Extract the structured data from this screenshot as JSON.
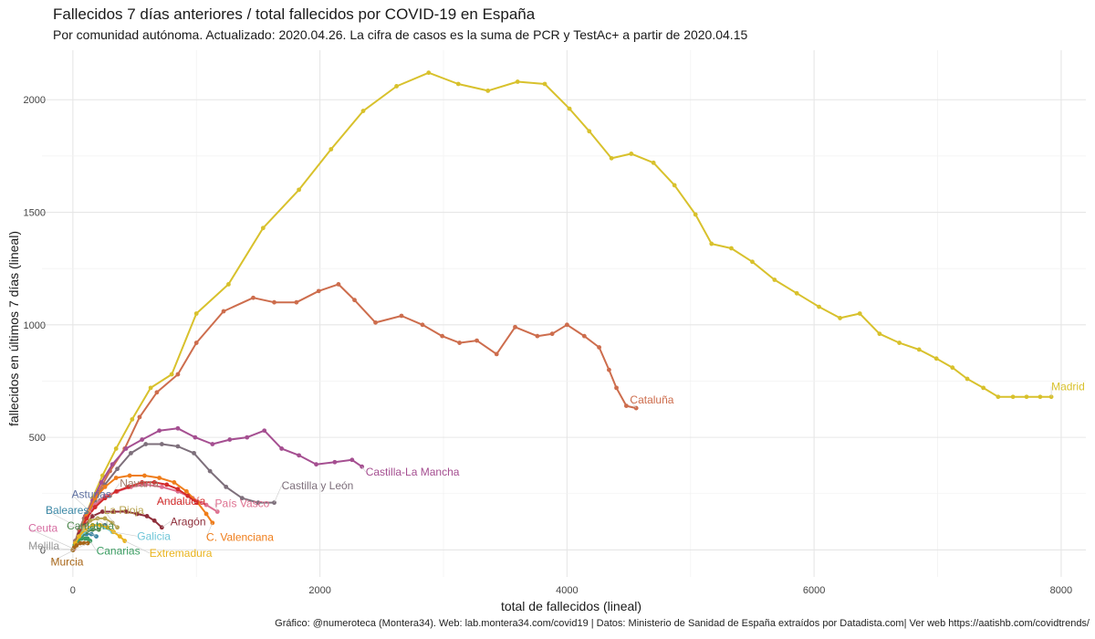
{
  "header": {
    "title": "Fallecidos 7 días anteriores / total fallecidos por COVID-19 en España",
    "subtitle": "Por comunidad autónoma. Actualizado: 2020.04.26. La cifra de casos es la suma de PCR y TestAc+ a partir de 2020.04.15"
  },
  "footer": {
    "caption": "Gráfico: @numeroteca (Montera34). Web: lab.montera34.com/covid19 | Datos: Ministerio de Sanidad de España extraídos por Datadista.com| Ver web https://aatishb.com/covidtrends/"
  },
  "chart_data": {
    "type": "line",
    "xlabel": "total de fallecidos (lineal)",
    "ylabel": "fallecidos en últimos 7 días (lineal)",
    "xlim": [
      -250,
      8200
    ],
    "ylim": [
      -120,
      2220
    ],
    "xticks": [
      0,
      2000,
      4000,
      6000,
      8000
    ],
    "yticks": [
      0,
      500,
      1000,
      1500,
      2000
    ],
    "grid": true,
    "legend": "none (direct labels)",
    "series": [
      {
        "name": "Madrid",
        "color": "#d8c12c",
        "label_at": [
          7920,
          710
        ],
        "x": [
          0,
          10,
          30,
          60,
          100,
          160,
          240,
          350,
          480,
          630,
          800,
          1000,
          1260,
          1540,
          1830,
          2090,
          2350,
          2620,
          2880,
          3120,
          3360,
          3600,
          3820,
          4020,
          4180,
          4360,
          4520,
          4700,
          4870,
          5040,
          5170,
          5330,
          5500,
          5680,
          5860,
          6040,
          6210,
          6370,
          6530,
          6690,
          6850,
          6990,
          7120,
          7240,
          7370,
          7490,
          7610,
          7720,
          7830,
          7920
        ],
        "y": [
          0,
          10,
          40,
          90,
          150,
          230,
          330,
          450,
          580,
          720,
          780,
          1050,
          1180,
          1430,
          1600,
          1780,
          1950,
          2060,
          2120,
          2070,
          2040,
          2080,
          2070,
          1960,
          1860,
          1740,
          1760,
          1720,
          1620,
          1490,
          1360,
          1340,
          1280,
          1200,
          1140,
          1080,
          1030,
          1050,
          960,
          920,
          890,
          850,
          810,
          760,
          720,
          680,
          680,
          680,
          680,
          680
        ]
      },
      {
        "name": "Cataluña",
        "color": "#cd6d4d",
        "label_at": [
          4510,
          650
        ],
        "x": [
          0,
          20,
          60,
          120,
          200,
          300,
          420,
          540,
          680,
          850,
          1000,
          1220,
          1460,
          1630,
          1810,
          1990,
          2150,
          2280,
          2450,
          2660,
          2830,
          2990,
          3130,
          3270,
          3430,
          3580,
          3760,
          3880,
          4000,
          4140,
          4260,
          4340,
          4400,
          4480,
          4560
        ],
        "y": [
          0,
          20,
          70,
          150,
          250,
          350,
          450,
          590,
          700,
          780,
          920,
          1060,
          1120,
          1100,
          1100,
          1150,
          1180,
          1110,
          1010,
          1040,
          1000,
          950,
          920,
          930,
          870,
          990,
          950,
          960,
          1000,
          950,
          900,
          800,
          720,
          640,
          630
        ]
      },
      {
        "name": "Castilla-La Mancha",
        "color": "#a54f91",
        "label_at": [
          2370,
          330
        ],
        "x": [
          0,
          20,
          50,
          100,
          160,
          230,
          320,
          430,
          560,
          700,
          850,
          990,
          1130,
          1270,
          1410,
          1550,
          1690,
          1830,
          1970,
          2120,
          2260,
          2340
        ],
        "y": [
          0,
          40,
          90,
          150,
          220,
          300,
          380,
          450,
          490,
          530,
          540,
          500,
          470,
          490,
          500,
          530,
          450,
          420,
          380,
          390,
          400,
          370
        ]
      },
      {
        "name": "Castilla y León",
        "color": "#7d6f7b",
        "label_at": [
          1690,
          270
        ],
        "x": [
          0,
          20,
          60,
          110,
          180,
          260,
          360,
          470,
          590,
          720,
          850,
          980,
          1110,
          1240,
          1370,
          1500,
          1630
        ],
        "y": [
          0,
          40,
          100,
          160,
          220,
          290,
          360,
          430,
          470,
          470,
          460,
          430,
          350,
          280,
          230,
          210,
          210
        ]
      },
      {
        "name": "Navarra",
        "color": "#a07a68",
        "label_at": [
          380,
          280
        ],
        "x": [
          0,
          20,
          50,
          90,
          150,
          220,
          300
        ],
        "y": [
          0,
          40,
          90,
          140,
          190,
          220,
          240
        ]
      },
      {
        "name": "País Vasco",
        "color": "#de6f8f",
        "label_at": [
          1150,
          190
        ],
        "x": [
          0,
          20,
          60,
          110,
          180,
          260,
          360,
          470,
          590,
          720,
          850,
          970,
          1080,
          1170
        ],
        "y": [
          0,
          30,
          80,
          140,
          200,
          240,
          260,
          280,
          290,
          280,
          260,
          230,
          200,
          170
        ]
      },
      {
        "name": "C. Valenciana",
        "color": "#ef7d1a",
        "label_at": [
          1080,
          40
        ],
        "x": [
          0,
          20,
          60,
          110,
          180,
          260,
          350,
          460,
          580,
          700,
          820,
          920,
          1010,
          1080,
          1130
        ],
        "y": [
          0,
          30,
          80,
          150,
          230,
          280,
          320,
          330,
          330,
          320,
          300,
          260,
          210,
          160,
          120
        ]
      },
      {
        "name": "Andalucía",
        "color": "#d42b2b",
        "label_at": [
          680,
          200
        ],
        "x": [
          0,
          20,
          60,
          110,
          180,
          260,
          350,
          450,
          560,
          660,
          760,
          850,
          930,
          1000
        ],
        "y": [
          0,
          30,
          80,
          140,
          190,
          230,
          260,
          280,
          300,
          300,
          290,
          270,
          240,
          210
        ]
      },
      {
        "name": "Aragón",
        "color": "#8e2e3a",
        "label_at": [
          790,
          110
        ],
        "x": [
          0,
          20,
          50,
          100,
          160,
          240,
          330,
          430,
          520,
          600,
          660,
          720
        ],
        "y": [
          0,
          30,
          70,
          110,
          150,
          170,
          170,
          170,
          160,
          150,
          130,
          100
        ]
      },
      {
        "name": "Asturias",
        "color": "#5d6fa0",
        "label_at": [
          -10,
          230
        ],
        "x": [
          0,
          20,
          50,
          90,
          140,
          200,
          260
        ],
        "y": [
          0,
          20,
          50,
          80,
          100,
          110,
          110
        ]
      },
      {
        "name": "Baleares",
        "color": "#3a87a5",
        "label_at": [
          -220,
          160
        ],
        "x": [
          0,
          15,
          40,
          70,
          110,
          150,
          190
        ],
        "y": [
          0,
          20,
          40,
          60,
          70,
          70,
          60
        ]
      },
      {
        "name": "Cantabria",
        "color": "#4f8a4f",
        "label_at": [
          -50,
          90
        ],
        "x": [
          0,
          15,
          40,
          70,
          110,
          160,
          210
        ],
        "y": [
          0,
          20,
          40,
          60,
          80,
          90,
          90
        ]
      },
      {
        "name": "La Rioja",
        "color": "#b7a34d",
        "label_at": [
          250,
          160
        ],
        "x": [
          0,
          20,
          50,
          90,
          140,
          200,
          260,
          320,
          360
        ],
        "y": [
          0,
          30,
          60,
          100,
          130,
          140,
          140,
          120,
          100
        ]
      },
      {
        "name": "Galicia",
        "color": "#6fc6d8",
        "label_at": [
          520,
          45
        ],
        "x": [
          0,
          20,
          50,
          90,
          140,
          200,
          260,
          320
        ],
        "y": [
          0,
          20,
          50,
          80,
          100,
          110,
          100,
          80
        ]
      },
      {
        "name": "Ceuta",
        "color": "#d66ca1",
        "label_at": [
          -360,
          80
        ],
        "x": [
          0,
          5,
          10
        ],
        "y": [
          0,
          3,
          4
        ]
      },
      {
        "name": "Melilla",
        "color": "#999999",
        "label_at": [
          -360,
          2
        ],
        "x": [
          0,
          1,
          2
        ],
        "y": [
          0,
          1,
          1
        ]
      },
      {
        "name": "Canarias",
        "color": "#3b9d62",
        "label_at": [
          190,
          -20
        ],
        "x": [
          0,
          15,
          40,
          70,
          100,
          120,
          140
        ],
        "y": [
          0,
          20,
          40,
          50,
          50,
          50,
          40
        ]
      },
      {
        "name": "Extremadura",
        "color": "#e9b31d",
        "label_at": [
          620,
          -30
        ],
        "x": [
          0,
          20,
          50,
          100,
          160,
          220,
          280,
          330,
          380,
          420
        ],
        "y": [
          0,
          30,
          60,
          90,
          110,
          110,
          100,
          80,
          60,
          40
        ]
      },
      {
        "name": "Murcia",
        "color": "#a86618",
        "label_at": [
          -180,
          -70
        ],
        "x": [
          0,
          10,
          30,
          60,
          90,
          120
        ],
        "y": [
          0,
          10,
          20,
          30,
          30,
          30
        ]
      }
    ]
  }
}
